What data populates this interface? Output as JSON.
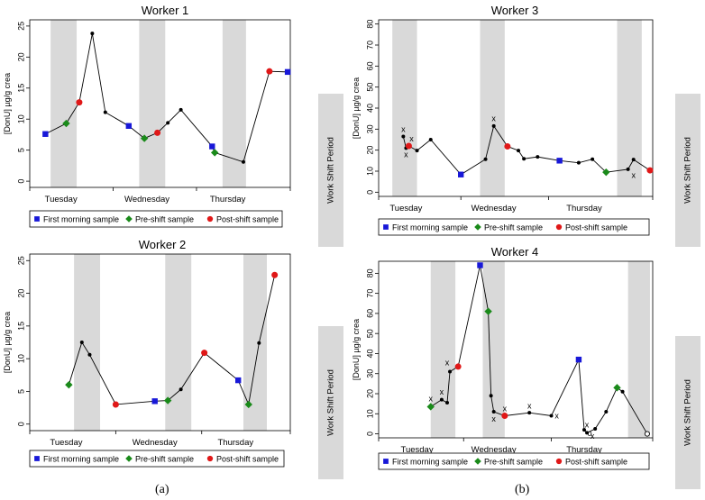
{
  "chart_data": [
    {
      "id": "worker1",
      "type": "line",
      "title": "Worker 1",
      "ylabel": "[DonU] µg/g crea",
      "ylim": [
        -1,
        26
      ],
      "yticks": [
        0,
        5,
        10,
        15,
        20,
        25
      ],
      "xlim": [
        0,
        1
      ],
      "day_labels": [
        {
          "label": "Tuesday",
          "x": 0.12
        },
        {
          "label": "Wednesday",
          "x": 0.45
        },
        {
          "label": "Thursday",
          "x": 0.76
        }
      ],
      "day_ticks": [
        0.0,
        0.32,
        0.64,
        1.0
      ],
      "shift_periods": [
        [
          0.08,
          0.18
        ],
        [
          0.42,
          0.52
        ],
        [
          0.74,
          0.83
        ]
      ],
      "side_label": "Work Shift Period",
      "points": [
        {
          "x": 0.06,
          "y": 7.6,
          "kind": "first"
        },
        {
          "x": 0.14,
          "y": 9.3,
          "kind": "pre"
        },
        {
          "x": 0.19,
          "y": 12.7,
          "kind": "post"
        },
        {
          "x": 0.24,
          "y": 23.8
        },
        {
          "x": 0.29,
          "y": 11.1
        },
        {
          "x": 0.38,
          "y": 8.9,
          "kind": "first"
        },
        {
          "x": 0.44,
          "y": 6.9,
          "kind": "pre"
        },
        {
          "x": 0.49,
          "y": 7.8,
          "kind": "post"
        },
        {
          "x": 0.53,
          "y": 9.4
        },
        {
          "x": 0.58,
          "y": 11.5
        },
        {
          "x": 0.7,
          "y": 5.6,
          "kind": "first"
        },
        {
          "x": 0.71,
          "y": 4.6,
          "kind": "pre"
        },
        {
          "x": 0.82,
          "y": 3.1
        },
        {
          "x": 0.92,
          "y": 17.7,
          "kind": "post"
        },
        {
          "x": 0.99,
          "y": 17.6,
          "kind": "first"
        }
      ],
      "x_marks": [],
      "o_marks": []
    },
    {
      "id": "worker2",
      "type": "line",
      "title": "Worker 2",
      "ylabel": "[DonU] µg/g crea",
      "ylim": [
        -1,
        26
      ],
      "yticks": [
        0,
        5,
        10,
        15,
        20,
        25
      ],
      "xlim": [
        0,
        1
      ],
      "day_labels": [
        {
          "label": "Tuesday",
          "x": 0.14
        },
        {
          "label": "Wednesday",
          "x": 0.48
        },
        {
          "label": "Thursday",
          "x": 0.79
        }
      ],
      "day_ticks": [
        0.0,
        0.33,
        0.66,
        1.0
      ],
      "shift_periods": [
        [
          0.17,
          0.27
        ],
        [
          0.52,
          0.62
        ],
        [
          0.82,
          0.91
        ]
      ],
      "side_label": "Work Shift Period",
      "points": [
        {
          "x": 0.15,
          "y": 6.0,
          "kind": "pre"
        },
        {
          "x": 0.2,
          "y": 12.5
        },
        {
          "x": 0.23,
          "y": 10.6
        },
        {
          "x": 0.33,
          "y": 3.0,
          "kind": "post"
        },
        {
          "x": 0.48,
          "y": 3.5,
          "kind": "first"
        },
        {
          "x": 0.53,
          "y": 3.6,
          "kind": "pre"
        },
        {
          "x": 0.58,
          "y": 5.3
        },
        {
          "x": 0.67,
          "y": 10.9,
          "kind": "post"
        },
        {
          "x": 0.8,
          "y": 6.7,
          "kind": "first"
        },
        {
          "x": 0.84,
          "y": 3.0,
          "kind": "pre"
        },
        {
          "x": 0.88,
          "y": 12.4
        },
        {
          "x": 0.94,
          "y": 22.8,
          "kind": "post"
        }
      ],
      "x_marks": [],
      "o_marks": []
    },
    {
      "id": "worker3",
      "type": "line",
      "title": "Worker 3",
      "ylabel": "[DonU] µg/g crea",
      "ylim": [
        -2,
        82
      ],
      "yticks": [
        0,
        10,
        20,
        30,
        40,
        50,
        60,
        70,
        80
      ],
      "xlim": [
        0,
        1
      ],
      "day_labels": [
        {
          "label": "Tuesday",
          "x": 0.1
        },
        {
          "label": "Wednesday",
          "x": 0.42
        },
        {
          "label": "Thursday",
          "x": 0.75
        }
      ],
      "day_ticks": [
        0.0,
        0.3,
        0.62,
        1.0
      ],
      "shift_periods": [
        [
          0.05,
          0.14
        ],
        [
          0.37,
          0.46
        ],
        [
          0.87,
          0.96
        ]
      ],
      "side_label": "Work Shift Period",
      "points": [
        {
          "x": 0.09,
          "y": 26.5
        },
        {
          "x": 0.1,
          "y": 21.0
        },
        {
          "x": 0.11,
          "y": 22.0,
          "kind": "post"
        },
        {
          "x": 0.14,
          "y": 19.8
        },
        {
          "x": 0.19,
          "y": 25.0
        },
        {
          "x": 0.3,
          "y": 8.4,
          "kind": "first"
        },
        {
          "x": 0.39,
          "y": 15.7
        },
        {
          "x": 0.42,
          "y": 31.5
        },
        {
          "x": 0.47,
          "y": 21.8,
          "kind": "post"
        },
        {
          "x": 0.51,
          "y": 19.8
        },
        {
          "x": 0.53,
          "y": 15.9
        },
        {
          "x": 0.58,
          "y": 16.8
        },
        {
          "x": 0.66,
          "y": 15.0,
          "kind": "first"
        },
        {
          "x": 0.73,
          "y": 14.0
        },
        {
          "x": 0.78,
          "y": 15.7
        },
        {
          "x": 0.83,
          "y": 9.5,
          "kind": "pre"
        },
        {
          "x": 0.91,
          "y": 10.9
        },
        {
          "x": 0.93,
          "y": 15.5
        },
        {
          "x": 0.99,
          "y": 10.4,
          "kind": "post"
        }
      ],
      "x_marks": [
        {
          "x": 0.09,
          "y": 30.0
        },
        {
          "x": 0.1,
          "y": 18.0
        },
        {
          "x": 0.12,
          "y": 25.5
        },
        {
          "x": 0.42,
          "y": 35.0
        },
        {
          "x": 0.93,
          "y": 8.0
        }
      ],
      "o_marks": []
    },
    {
      "id": "worker4",
      "type": "line",
      "title": "Worker 4",
      "ylabel": "[DonU] µg/g crea",
      "ylim": [
        -2,
        86
      ],
      "yticks": [
        0,
        10,
        20,
        30,
        40,
        50,
        60,
        70,
        80
      ],
      "xlim": [
        0,
        1
      ],
      "day_labels": [
        {
          "label": "Tuesday",
          "x": 0.14
        },
        {
          "label": "Wednesday",
          "x": 0.42
        },
        {
          "label": "Thursday",
          "x": 0.75
        }
      ],
      "day_ticks": [
        0.0,
        0.31,
        0.63,
        1.0
      ],
      "shift_periods": [
        [
          0.19,
          0.28
        ],
        [
          0.38,
          0.46
        ],
        [
          0.91,
          0.99
        ]
      ],
      "side_label": "Work Shift Period",
      "points": [
        {
          "x": 0.19,
          "y": 13.5,
          "kind": "pre"
        },
        {
          "x": 0.23,
          "y": 17.0
        },
        {
          "x": 0.25,
          "y": 15.5
        },
        {
          "x": 0.26,
          "y": 31.0
        },
        {
          "x": 0.29,
          "y": 33.5,
          "kind": "post"
        },
        {
          "x": 0.37,
          "y": 84.0,
          "kind": "first"
        },
        {
          "x": 0.4,
          "y": 61.0,
          "kind": "pre"
        },
        {
          "x": 0.41,
          "y": 19.0
        },
        {
          "x": 0.42,
          "y": 11.0
        },
        {
          "x": 0.46,
          "y": 9.0,
          "kind": "post"
        },
        {
          "x": 0.55,
          "y": 10.5
        },
        {
          "x": 0.63,
          "y": 9.0
        },
        {
          "x": 0.73,
          "y": 37.0,
          "kind": "first"
        },
        {
          "x": 0.75,
          "y": 2.0
        },
        {
          "x": 0.76,
          "y": 0.5
        },
        {
          "x": 0.79,
          "y": 2.5
        },
        {
          "x": 0.83,
          "y": 11.0
        },
        {
          "x": 0.87,
          "y": 23.0,
          "kind": "pre"
        },
        {
          "x": 0.89,
          "y": 21.0
        },
        {
          "x": 0.98,
          "y": 0.0,
          "open": true
        }
      ],
      "x_marks": [
        {
          "x": 0.19,
          "y": 17.5
        },
        {
          "x": 0.23,
          "y": 21.0
        },
        {
          "x": 0.25,
          "y": 35.5
        },
        {
          "x": 0.42,
          "y": 7.5
        },
        {
          "x": 0.46,
          "y": 12.5
        },
        {
          "x": 0.55,
          "y": 14.0
        },
        {
          "x": 0.65,
          "y": 9.0
        },
        {
          "x": 0.76,
          "y": 4.5
        },
        {
          "x": 0.78,
          "y": -1.0
        }
      ],
      "o_marks": [
        {
          "x": 0.77,
          "y": 0.3
        }
      ]
    }
  ],
  "legend": [
    {
      "label": "First morning sample",
      "kind": "first"
    },
    {
      "label": "Pre-shift sample",
      "kind": "pre"
    },
    {
      "label": "Post-shift sample",
      "kind": "post"
    }
  ],
  "colors": {
    "first": "#1818d8",
    "pre": "#1a8a1a",
    "post": "#e01818",
    "shift": "#d9d9d9",
    "axis": "#000000"
  },
  "panel_labels": {
    "a": "(a)",
    "b": "(b)"
  }
}
